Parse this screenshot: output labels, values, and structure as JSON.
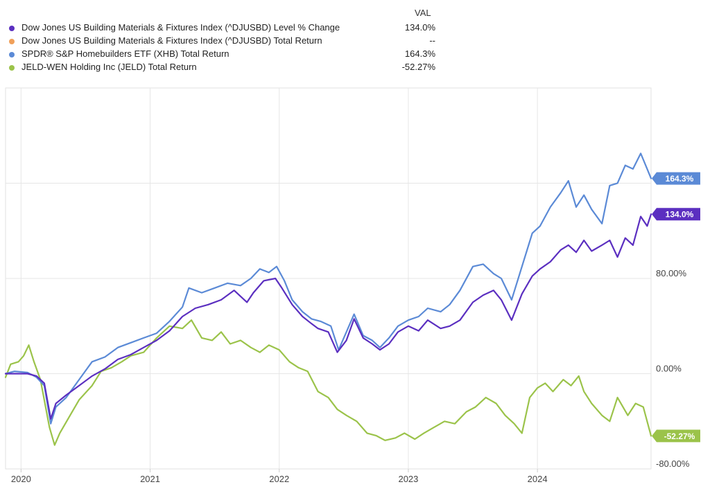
{
  "legend": {
    "header": "VAL",
    "items": [
      {
        "name": "Dow Jones US Building Materials & Fixtures Index (^DJUSBD) Level % Change",
        "value": "134.0%",
        "color": "#5b2fc0"
      },
      {
        "name": "Dow Jones US Building Materials & Fixtures Index (^DJUSBD) Total Return",
        "value": "--",
        "color": "#f0a05a"
      },
      {
        "name": "SPDR® S&P Homebuilders ETF (XHB) Total Return",
        "value": "164.3%",
        "color": "#5b8ad6"
      },
      {
        "name": "JELD-WEN Holding Inc (JELD) Total Return",
        "value": "-52.27%",
        "color": "#9bc34a"
      }
    ]
  },
  "chart_data": {
    "type": "line",
    "x_ticks": [
      "2020",
      "2021",
      "2022",
      "2023",
      "2024"
    ],
    "y_ticks": [
      "80.00%",
      "0.00%",
      "-80.00%"
    ],
    "y_tick_values": [
      80,
      0,
      -80
    ],
    "ylim": [
      -80,
      240
    ],
    "xlim": [
      2019.88,
      2024.88
    ],
    "grid": true,
    "end_labels": {
      "djusbd": "134.0%",
      "xhb": "164.3%",
      "jeld": "-52.27%"
    },
    "series": [
      {
        "id": "djusbd",
        "name": "Dow Jones US Building Materials & Fixtures Index (^DJUSBD) Level % Change",
        "color": "#5b2fc0",
        "points": [
          [
            2019.88,
            0
          ],
          [
            2019.95,
            0
          ],
          [
            2020.05,
            0
          ],
          [
            2020.12,
            -2
          ],
          [
            2020.18,
            -8
          ],
          [
            2020.23,
            -38
          ],
          [
            2020.27,
            -25
          ],
          [
            2020.35,
            -18
          ],
          [
            2020.45,
            -10
          ],
          [
            2020.55,
            -2
          ],
          [
            2020.65,
            4
          ],
          [
            2020.75,
            12
          ],
          [
            2020.85,
            16
          ],
          [
            2020.95,
            22
          ],
          [
            2021.05,
            28
          ],
          [
            2021.15,
            36
          ],
          [
            2021.25,
            48
          ],
          [
            2021.35,
            55
          ],
          [
            2021.45,
            58
          ],
          [
            2021.55,
            62
          ],
          [
            2021.65,
            70
          ],
          [
            2021.75,
            60
          ],
          [
            2021.8,
            68
          ],
          [
            2021.88,
            78
          ],
          [
            2021.97,
            80
          ],
          [
            2022.02,
            72
          ],
          [
            2022.1,
            58
          ],
          [
            2022.18,
            48
          ],
          [
            2022.25,
            42
          ],
          [
            2022.3,
            38
          ],
          [
            2022.38,
            35
          ],
          [
            2022.45,
            18
          ],
          [
            2022.52,
            28
          ],
          [
            2022.58,
            46
          ],
          [
            2022.65,
            30
          ],
          [
            2022.72,
            25
          ],
          [
            2022.78,
            20
          ],
          [
            2022.85,
            25
          ],
          [
            2022.92,
            35
          ],
          [
            2023.0,
            40
          ],
          [
            2023.08,
            36
          ],
          [
            2023.15,
            45
          ],
          [
            2023.25,
            38
          ],
          [
            2023.32,
            40
          ],
          [
            2023.4,
            45
          ],
          [
            2023.5,
            60
          ],
          [
            2023.58,
            66
          ],
          [
            2023.66,
            70
          ],
          [
            2023.72,
            62
          ],
          [
            2023.8,
            45
          ],
          [
            2023.88,
            67
          ],
          [
            2023.96,
            82
          ],
          [
            2024.02,
            88
          ],
          [
            2024.1,
            94
          ],
          [
            2024.18,
            104
          ],
          [
            2024.24,
            108
          ],
          [
            2024.3,
            102
          ],
          [
            2024.36,
            112
          ],
          [
            2024.42,
            103
          ],
          [
            2024.5,
            108
          ],
          [
            2024.56,
            112
          ],
          [
            2024.62,
            98
          ],
          [
            2024.68,
            114
          ],
          [
            2024.74,
            108
          ],
          [
            2024.8,
            132
          ],
          [
            2024.85,
            124
          ],
          [
            2024.88,
            134
          ]
        ]
      },
      {
        "id": "xhb",
        "name": "SPDR® S&P Homebuilders ETF (XHB) Total Return",
        "color": "#5b8ad6",
        "points": [
          [
            2019.88,
            0
          ],
          [
            2019.95,
            2
          ],
          [
            2020.05,
            1
          ],
          [
            2020.12,
            -3
          ],
          [
            2020.18,
            -10
          ],
          [
            2020.23,
            -42
          ],
          [
            2020.27,
            -28
          ],
          [
            2020.35,
            -20
          ],
          [
            2020.45,
            -5
          ],
          [
            2020.55,
            10
          ],
          [
            2020.65,
            14
          ],
          [
            2020.75,
            22
          ],
          [
            2020.85,
            26
          ],
          [
            2020.95,
            30
          ],
          [
            2021.05,
            34
          ],
          [
            2021.15,
            44
          ],
          [
            2021.25,
            56
          ],
          [
            2021.3,
            72
          ],
          [
            2021.4,
            68
          ],
          [
            2021.5,
            72
          ],
          [
            2021.6,
            76
          ],
          [
            2021.7,
            74
          ],
          [
            2021.78,
            80
          ],
          [
            2021.85,
            88
          ],
          [
            2021.92,
            85
          ],
          [
            2021.98,
            90
          ],
          [
            2022.04,
            78
          ],
          [
            2022.1,
            62
          ],
          [
            2022.18,
            52
          ],
          [
            2022.25,
            46
          ],
          [
            2022.32,
            44
          ],
          [
            2022.4,
            40
          ],
          [
            2022.46,
            20
          ],
          [
            2022.52,
            35
          ],
          [
            2022.58,
            50
          ],
          [
            2022.65,
            32
          ],
          [
            2022.72,
            28
          ],
          [
            2022.78,
            22
          ],
          [
            2022.85,
            30
          ],
          [
            2022.92,
            40
          ],
          [
            2023.0,
            45
          ],
          [
            2023.08,
            48
          ],
          [
            2023.15,
            55
          ],
          [
            2023.25,
            52
          ],
          [
            2023.32,
            58
          ],
          [
            2023.4,
            70
          ],
          [
            2023.5,
            90
          ],
          [
            2023.58,
            92
          ],
          [
            2023.66,
            84
          ],
          [
            2023.72,
            80
          ],
          [
            2023.8,
            62
          ],
          [
            2023.88,
            90
          ],
          [
            2023.96,
            118
          ],
          [
            2024.02,
            124
          ],
          [
            2024.1,
            140
          ],
          [
            2024.18,
            152
          ],
          [
            2024.24,
            162
          ],
          [
            2024.3,
            140
          ],
          [
            2024.36,
            150
          ],
          [
            2024.42,
            138
          ],
          [
            2024.5,
            126
          ],
          [
            2024.56,
            158
          ],
          [
            2024.62,
            160
          ],
          [
            2024.68,
            175
          ],
          [
            2024.74,
            172
          ],
          [
            2024.8,
            185
          ],
          [
            2024.85,
            172
          ],
          [
            2024.88,
            164
          ]
        ]
      },
      {
        "id": "jeld",
        "name": "JELD-WEN Holding Inc (JELD) Total Return",
        "color": "#9bc34a",
        "points": [
          [
            2019.88,
            -3
          ],
          [
            2019.92,
            8
          ],
          [
            2019.98,
            10
          ],
          [
            2020.02,
            15
          ],
          [
            2020.06,
            24
          ],
          [
            2020.1,
            10
          ],
          [
            2020.15,
            -5
          ],
          [
            2020.22,
            -45
          ],
          [
            2020.26,
            -60
          ],
          [
            2020.3,
            -50
          ],
          [
            2020.38,
            -35
          ],
          [
            2020.45,
            -22
          ],
          [
            2020.55,
            -10
          ],
          [
            2020.62,
            2
          ],
          [
            2020.7,
            5
          ],
          [
            2020.78,
            10
          ],
          [
            2020.85,
            15
          ],
          [
            2020.95,
            18
          ],
          [
            2021.05,
            30
          ],
          [
            2021.15,
            40
          ],
          [
            2021.25,
            38
          ],
          [
            2021.32,
            45
          ],
          [
            2021.4,
            30
          ],
          [
            2021.48,
            28
          ],
          [
            2021.55,
            35
          ],
          [
            2021.62,
            25
          ],
          [
            2021.7,
            28
          ],
          [
            2021.78,
            22
          ],
          [
            2021.85,
            18
          ],
          [
            2021.92,
            24
          ],
          [
            2022.0,
            20
          ],
          [
            2022.08,
            10
          ],
          [
            2022.15,
            5
          ],
          [
            2022.22,
            2
          ],
          [
            2022.3,
            -15
          ],
          [
            2022.38,
            -20
          ],
          [
            2022.45,
            -30
          ],
          [
            2022.52,
            -35
          ],
          [
            2022.6,
            -40
          ],
          [
            2022.68,
            -50
          ],
          [
            2022.75,
            -52
          ],
          [
            2022.82,
            -56
          ],
          [
            2022.9,
            -54
          ],
          [
            2022.97,
            -50
          ],
          [
            2023.05,
            -55
          ],
          [
            2023.12,
            -50
          ],
          [
            2023.2,
            -45
          ],
          [
            2023.28,
            -40
          ],
          [
            2023.36,
            -42
          ],
          [
            2023.45,
            -32
          ],
          [
            2023.52,
            -28
          ],
          [
            2023.6,
            -20
          ],
          [
            2023.68,
            -25
          ],
          [
            2023.75,
            -35
          ],
          [
            2023.82,
            -42
          ],
          [
            2023.88,
            -50
          ],
          [
            2023.94,
            -20
          ],
          [
            2024.0,
            -12
          ],
          [
            2024.06,
            -8
          ],
          [
            2024.12,
            -15
          ],
          [
            2024.2,
            -5
          ],
          [
            2024.26,
            -10
          ],
          [
            2024.32,
            -2
          ],
          [
            2024.36,
            -15
          ],
          [
            2024.42,
            -25
          ],
          [
            2024.5,
            -35
          ],
          [
            2024.56,
            -40
          ],
          [
            2024.62,
            -20
          ],
          [
            2024.7,
            -35
          ],
          [
            2024.76,
            -25
          ],
          [
            2024.82,
            -28
          ],
          [
            2024.88,
            -52.27
          ]
        ]
      }
    ]
  }
}
